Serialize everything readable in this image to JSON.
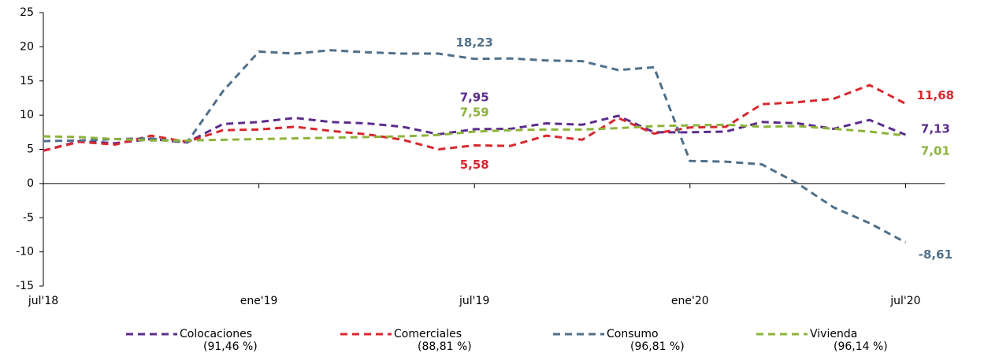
{
  "chart_data": {
    "type": "line",
    "categories": [
      "jul'18",
      null,
      null,
      null,
      null,
      null,
      "ene'19",
      null,
      null,
      null,
      null,
      null,
      "jul'19",
      null,
      null,
      null,
      null,
      null,
      "ene'20",
      null,
      null,
      null,
      null,
      null,
      "jul'20"
    ],
    "ylim": [
      -15,
      25
    ],
    "yticks": [
      -15,
      -10,
      -5,
      0,
      5,
      10,
      15,
      20,
      25
    ],
    "line_style": "dashed",
    "series": [
      {
        "name": "Colocaciones",
        "note": "(91,46 %)",
        "color": "#5b2c8c",
        "values": [
          4.8,
          6.2,
          5.9,
          6.5,
          6.0,
          8.7,
          9.0,
          9.6,
          9.0,
          8.8,
          8.3,
          7.2,
          7.95,
          8.0,
          8.8,
          8.6,
          9.9,
          7.5,
          7.5,
          7.6,
          9.0,
          8.8,
          8.0,
          9.3,
          7.13
        ],
        "value_labels": [
          null,
          null,
          null,
          null,
          null,
          null,
          null,
          null,
          null,
          null,
          null,
          null,
          "7,95",
          null,
          null,
          null,
          null,
          null,
          null,
          null,
          null,
          null,
          null,
          null,
          "7,13"
        ]
      },
      {
        "name": "Comerciales",
        "note": "(88,81 %)",
        "color": "#d9272e",
        "values": [
          4.8,
          6.1,
          5.7,
          7.0,
          6.1,
          7.8,
          7.9,
          8.3,
          7.7,
          7.2,
          6.4,
          5.0,
          5.58,
          5.5,
          7.0,
          6.4,
          9.6,
          7.3,
          8.2,
          8.3,
          11.6,
          11.9,
          12.4,
          14.4,
          11.68
        ],
        "value_labels": [
          null,
          null,
          null,
          null,
          null,
          null,
          null,
          null,
          null,
          null,
          null,
          null,
          "5,58",
          null,
          null,
          null,
          null,
          null,
          null,
          null,
          null,
          null,
          null,
          null,
          "11,68"
        ]
      },
      {
        "name": "Consumo",
        "note": "(96,81 %)",
        "color": "#50708a",
        "values": [
          6.2,
          6.3,
          6.5,
          6.6,
          6.0,
          13.5,
          19.3,
          19.0,
          19.5,
          19.2,
          19.0,
          19.0,
          18.23,
          18.3,
          18.0,
          17.9,
          16.6,
          17.0,
          3.3,
          3.2,
          2.8,
          0.0,
          -3.5,
          -5.8,
          -8.61
        ],
        "value_labels": [
          null,
          null,
          null,
          null,
          null,
          null,
          null,
          null,
          null,
          null,
          null,
          null,
          "18,23",
          null,
          null,
          null,
          null,
          null,
          null,
          null,
          null,
          null,
          null,
          null,
          "-8,61"
        ]
      },
      {
        "name": "Vivienda",
        "note": "(96,14 %)",
        "color": "#8db43a",
        "values": [
          6.9,
          6.8,
          6.5,
          6.3,
          6.3,
          6.4,
          6.5,
          6.6,
          6.7,
          6.8,
          6.9,
          7.1,
          7.59,
          7.8,
          7.9,
          7.9,
          8.1,
          8.4,
          8.5,
          8.6,
          8.3,
          8.4,
          8.0,
          7.6,
          7.01
        ],
        "value_labels": [
          null,
          null,
          null,
          null,
          null,
          null,
          null,
          null,
          null,
          null,
          null,
          null,
          "7,59",
          null,
          null,
          null,
          null,
          null,
          null,
          null,
          null,
          null,
          null,
          null,
          "7,01"
        ]
      }
    ]
  }
}
